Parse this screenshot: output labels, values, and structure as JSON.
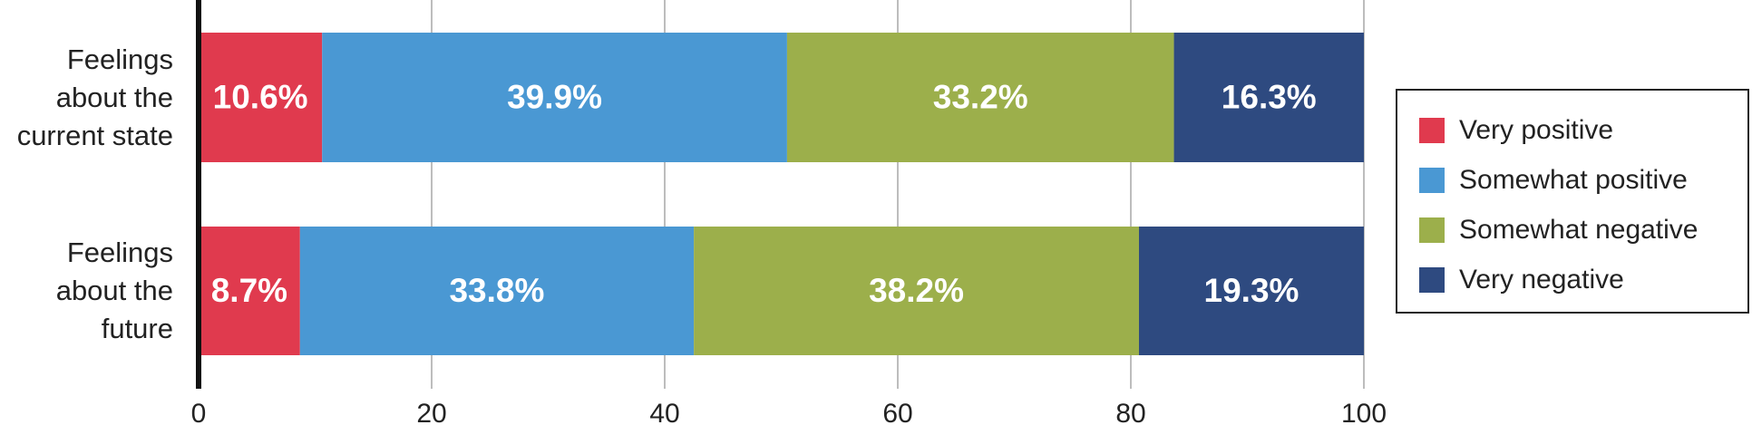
{
  "chart_data": {
    "type": "stacked-bar-horizontal",
    "categories": [
      "Feelings about the current state",
      "Feelings about the future"
    ],
    "series": [
      {
        "name": "Very positive",
        "color": "#e03a4e",
        "values": [
          10.6,
          8.7
        ],
        "value_labels": [
          "10.6%",
          "8.7%"
        ]
      },
      {
        "name": "Somewhat positive",
        "color": "#4a98d3",
        "values": [
          39.9,
          33.8
        ],
        "value_labels": [
          "39.9%",
          "33.8%"
        ]
      },
      {
        "name": "Somewhat negative",
        "color": "#9caf4b",
        "values": [
          33.2,
          38.2
        ],
        "value_labels": [
          "33.2%",
          "38.2%"
        ]
      },
      {
        "name": "Very negative",
        "color": "#2e4a80",
        "values": [
          16.3,
          19.3
        ],
        "value_labels": [
          "16.3%",
          "19.3%"
        ]
      }
    ],
    "xlim": [
      0,
      100
    ],
    "xticks": [
      0,
      20,
      40,
      60,
      80,
      100
    ],
    "grid": true,
    "legend": "right"
  }
}
